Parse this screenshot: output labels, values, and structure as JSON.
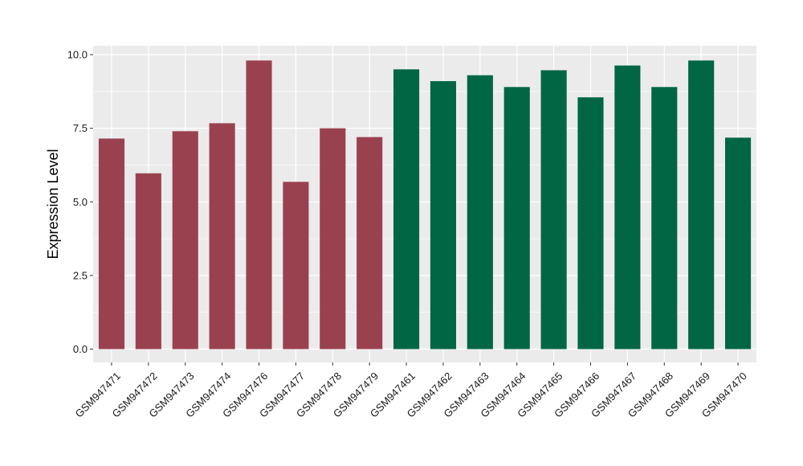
{
  "chart_data": {
    "type": "bar",
    "ylabel": "Expression Level",
    "xlabel": "",
    "title": "",
    "ylim": [
      -0.45,
      10.3
    ],
    "yticks": [
      0.0,
      2.5,
      5.0,
      7.5,
      10.0
    ],
    "ytick_labels": [
      "0.0",
      "2.5",
      "5.0",
      "7.5",
      "10.0"
    ],
    "grid": true,
    "background": "#ebebeb",
    "grid_color": "#ffffff",
    "categories": [
      "GSM947471",
      "GSM947472",
      "GSM947473",
      "GSM947474",
      "GSM947476",
      "GSM947477",
      "GSM947478",
      "GSM947479",
      "GSM947461",
      "GSM947462",
      "GSM947463",
      "GSM947464",
      "GSM947465",
      "GSM947466",
      "GSM947467",
      "GSM947468",
      "GSM947469",
      "GSM947470"
    ],
    "values": [
      7.15,
      5.97,
      7.4,
      7.67,
      9.8,
      5.68,
      7.5,
      7.2,
      9.5,
      9.1,
      9.3,
      8.9,
      9.47,
      8.55,
      9.63,
      8.9,
      9.8,
      7.18
    ],
    "group_colors": [
      "#9a4150",
      "#9a4150",
      "#9a4150",
      "#9a4150",
      "#9a4150",
      "#9a4150",
      "#9a4150",
      "#9a4150",
      "#006644",
      "#006644",
      "#006644",
      "#006644",
      "#006644",
      "#006644",
      "#006644",
      "#006644",
      "#006644",
      "#006644"
    ]
  }
}
